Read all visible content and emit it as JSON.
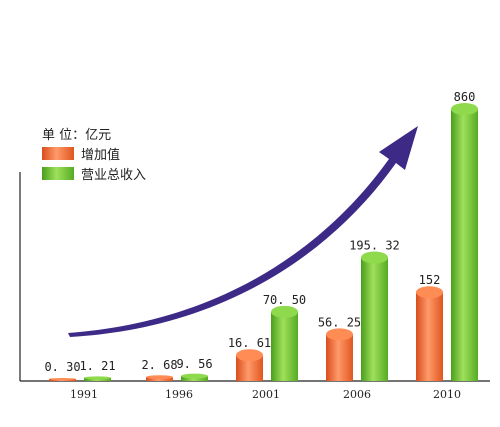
{
  "chart_data": {
    "type": "bar",
    "unit_label": "单 位：亿元",
    "categories": [
      "1991",
      "1996",
      "2001",
      "2006",
      "2010"
    ],
    "series": [
      {
        "name": "增加值",
        "color": "#f26a33",
        "values": [
          0.3,
          2.68,
          16.61,
          56.25,
          152
        ],
        "labels": [
          "0. 30",
          "2. 68",
          "16. 61",
          "56. 25",
          "152"
        ]
      },
      {
        "name": "营业总收入",
        "color": "#6cc234",
        "values": [
          1.21,
          9.56,
          70.5,
          195.32,
          860
        ],
        "labels": [
          "1. 21",
          "9. 56",
          "70. 50",
          "195. 32",
          "860"
        ]
      }
    ],
    "arrow_color": "#3d2a87"
  }
}
